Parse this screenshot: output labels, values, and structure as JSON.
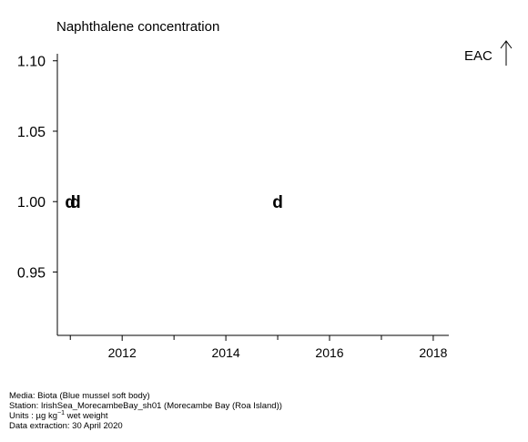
{
  "chart_data": {
    "type": "scatter",
    "title": "Naphthalene concentration",
    "xlabel": "",
    "ylabel": "",
    "xlim": [
      2010.75,
      2018.3
    ],
    "ylim": [
      0.905,
      1.105
    ],
    "x_major_ticks": [
      2012,
      2014,
      2016,
      2018
    ],
    "x_minor_ticks": [
      2011,
      2013,
      2015,
      2017
    ],
    "x_tick_labels": [
      "2012",
      "2014",
      "2016",
      "2018"
    ],
    "y_ticks": [
      0.95,
      1.0,
      1.05,
      1.1
    ],
    "y_tick_labels": [
      "0.95",
      "1.00",
      "1.05",
      "1.10"
    ],
    "grid": false,
    "series": [
      {
        "marker": "d",
        "points": [
          {
            "x": 2011.0,
            "y": 1.0,
            "label": "d"
          },
          {
            "x": 2011.1,
            "y": 1.0,
            "label": "d"
          },
          {
            "x": 2015.0,
            "y": 1.0,
            "label": "d"
          }
        ]
      }
    ],
    "annotation": {
      "text": "EAC",
      "symbol": "up-arrow"
    }
  },
  "footer": {
    "media": "Media: Biota (Blue mussel soft body)",
    "station": "Station: IrishSea_MorecambeBay_sh01 (Morecambe Bay (Roa Island))",
    "units_prefix": "Units : µg kg",
    "units_exponent": "−1",
    "units_suffix": " wet weight",
    "extraction": "Data extraction: 30 April 2020"
  }
}
